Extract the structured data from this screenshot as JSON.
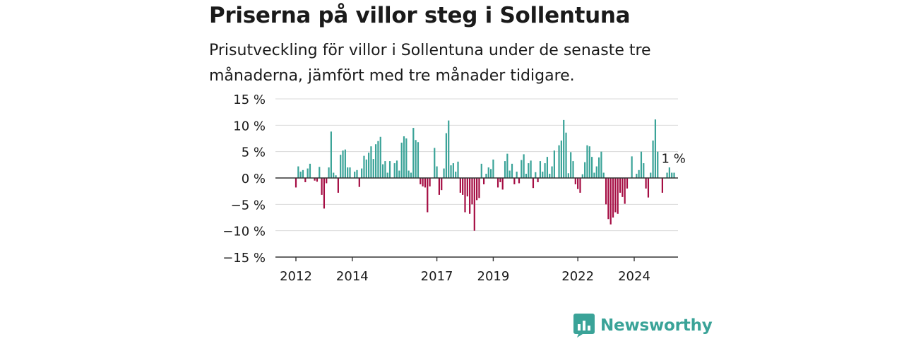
{
  "header": {
    "title": "Priserna på villor steg i Sollentuna",
    "subtitle": "Prisutveckling för villor i Sollentuna under de senaste tre månaderna, jämfört med tre månader tidigare."
  },
  "brand": {
    "name": "Newsworthy",
    "color": "#3aa398"
  },
  "chart_data": {
    "type": "bar",
    "y_unit": "%",
    "ylim": [
      -15,
      15
    ],
    "y_ticks": [
      15,
      10,
      5,
      0,
      -5,
      -10,
      -15
    ],
    "y_tick_labels": [
      "15 %",
      "10 %",
      "5 %",
      "0 %",
      "−5 %",
      "−10 %",
      "−15 %"
    ],
    "x_ticks": [
      2012,
      2014,
      2017,
      2019,
      2022,
      2024
    ],
    "x_tick_labels": [
      "2012",
      "2014",
      "2017",
      "2019",
      "2022",
      "2024"
    ],
    "x_start": 2012.0,
    "x_step": 0.08333,
    "values": [
      -1.8,
      2.2,
      1.2,
      1.5,
      -0.8,
      1.8,
      2.7,
      0,
      -0.5,
      -0.7,
      2.1,
      -3.2,
      -5.8,
      -1.0,
      2.0,
      8.8,
      1.0,
      0.5,
      -2.8,
      4.4,
      5.2,
      5.4,
      2.0,
      2.0,
      0,
      1.2,
      1.5,
      -1.7,
      1.8,
      4.2,
      3.5,
      4.8,
      6.0,
      3.6,
      6.4,
      7.0,
      7.8,
      2.6,
      3.2,
      1.0,
      3.2,
      0,
      2.8,
      3.3,
      1.4,
      6.7,
      7.9,
      7.5,
      1.4,
      1.0,
      9.5,
      7.2,
      6.8,
      -1.2,
      -1.6,
      -1.8,
      -6.5,
      -1.6,
      0,
      5.7,
      2.2,
      -3.2,
      -2.3,
      1.8,
      8.5,
      10.9,
      2.4,
      2.8,
      1.2,
      3.1,
      -2.8,
      -3.2,
      -6.5,
      -3.5,
      -6.8,
      -5.0,
      -10.0,
      -4.2,
      -3.8,
      2.7,
      -1.2,
      0.8,
      2.0,
      1.7,
      3.5,
      0,
      -1.8,
      -0.8,
      -2.2,
      3.2,
      4.6,
      1.4,
      2.7,
      -1.2,
      1.2,
      -1.0,
      3.4,
      4.5,
      0.8,
      2.8,
      3.3,
      -1.9,
      1.1,
      -0.8,
      3.2,
      1.2,
      2.8,
      4.0,
      0.8,
      2.2,
      5.2,
      0,
      6.2,
      7.1,
      11.0,
      8.6,
      0.9,
      4.9,
      3.2,
      -1.2,
      -2.1,
      -2.8,
      0.7,
      3.0,
      6.2,
      6.0,
      4.0,
      1.0,
      2.2,
      3.9,
      5.0,
      1.0,
      -5.0,
      -7.8,
      -8.8,
      -7.5,
      -6.5,
      -6.8,
      -2.8,
      -3.6,
      -4.9,
      -2.0,
      0,
      4.1,
      0,
      0.8,
      1.5,
      5.0,
      2.8,
      -2.0,
      -3.7,
      1.0,
      7.1,
      11.1,
      5.0,
      0,
      -2.8,
      0,
      1.0,
      2.0,
      1.0,
      1.0
    ],
    "annotation": {
      "text": "1 %",
      "value": 1
    },
    "colors": {
      "positive": "#3aa398",
      "negative": "#a50d43"
    },
    "grid": true,
    "legend": "none"
  }
}
